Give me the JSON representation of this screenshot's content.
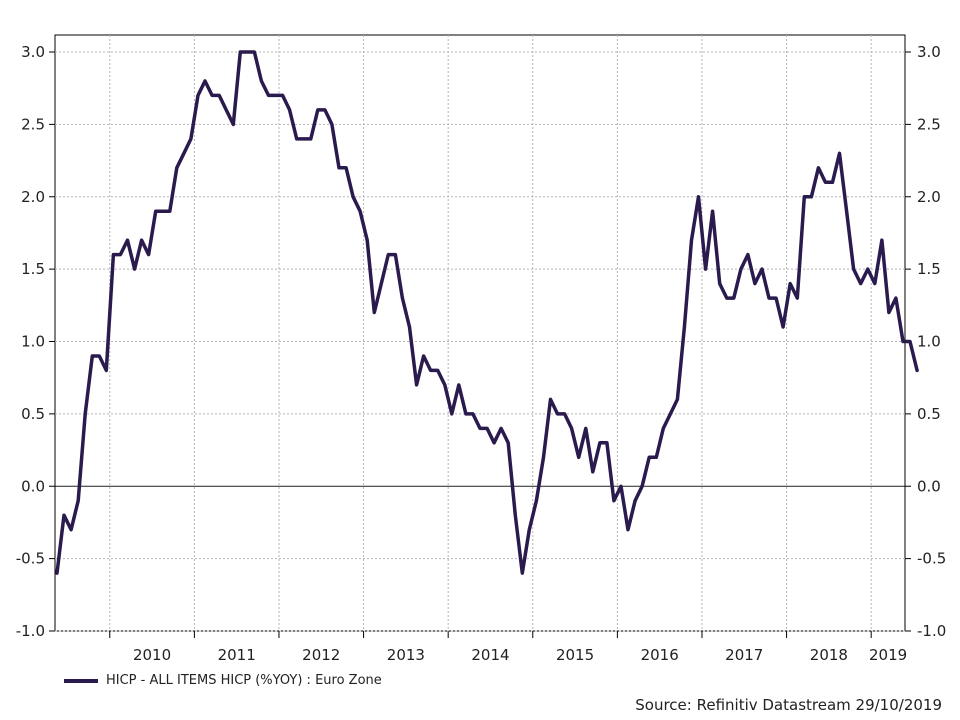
{
  "chart_data": {
    "type": "line",
    "title": "",
    "xlabel": "",
    "ylabel": "",
    "ylim": [
      -1.0,
      3.0
    ],
    "y_ticks": [
      "3.0",
      "2.5",
      "2.0",
      "1.5",
      "1.0",
      "0.5",
      "0.0",
      "-0.5",
      "-1.0"
    ],
    "y_tick_values": [
      3.0,
      2.5,
      2.0,
      1.5,
      1.0,
      0.5,
      0.0,
      -0.5,
      -1.0
    ],
    "x_tick_labels": [
      "2010",
      "2011",
      "2012",
      "2013",
      "2014",
      "2015",
      "2016",
      "2017",
      "2018",
      "2019"
    ],
    "x_start": "2009-07",
    "grid": true,
    "legend_position": "bottom-left",
    "line_color": "#2a1a4d",
    "series": [
      {
        "name": "HICP - ALL ITEMS HICP (%YOY) : Euro Zone",
        "values": [
          -0.6,
          -0.2,
          -0.3,
          -0.1,
          0.5,
          0.9,
          0.9,
          0.8,
          1.6,
          1.6,
          1.7,
          1.5,
          1.7,
          1.6,
          1.9,
          1.9,
          1.9,
          2.2,
          2.3,
          2.4,
          2.7,
          2.8,
          2.7,
          2.7,
          2.6,
          2.5,
          3.0,
          3.0,
          3.0,
          2.8,
          2.7,
          2.7,
          2.7,
          2.6,
          2.4,
          2.4,
          2.4,
          2.6,
          2.6,
          2.5,
          2.2,
          2.2,
          2.0,
          1.9,
          1.7,
          1.2,
          1.4,
          1.6,
          1.6,
          1.3,
          1.1,
          0.7,
          0.9,
          0.8,
          0.8,
          0.7,
          0.5,
          0.7,
          0.5,
          0.5,
          0.4,
          0.4,
          0.3,
          0.4,
          0.3,
          -0.2,
          -0.6,
          -0.3,
          -0.1,
          0.2,
          0.6,
          0.5,
          0.5,
          0.4,
          0.2,
          0.4,
          0.1,
          0.3,
          0.3,
          -0.1,
          0.0,
          -0.3,
          -0.1,
          0.0,
          0.2,
          0.2,
          0.4,
          0.5,
          0.6,
          1.1,
          1.7,
          2.0,
          1.5,
          1.9,
          1.4,
          1.3,
          1.3,
          1.5,
          1.6,
          1.4,
          1.5,
          1.3,
          1.3,
          1.1,
          1.4,
          1.3,
          2.0,
          2.0,
          2.2,
          2.1,
          2.1,
          2.3,
          1.9,
          1.5,
          1.4,
          1.5,
          1.4,
          1.7,
          1.2,
          1.3,
          1.0,
          1.0,
          0.8
        ]
      }
    ]
  },
  "source": "Source: Refinitiv Datastream 29/10/2019"
}
